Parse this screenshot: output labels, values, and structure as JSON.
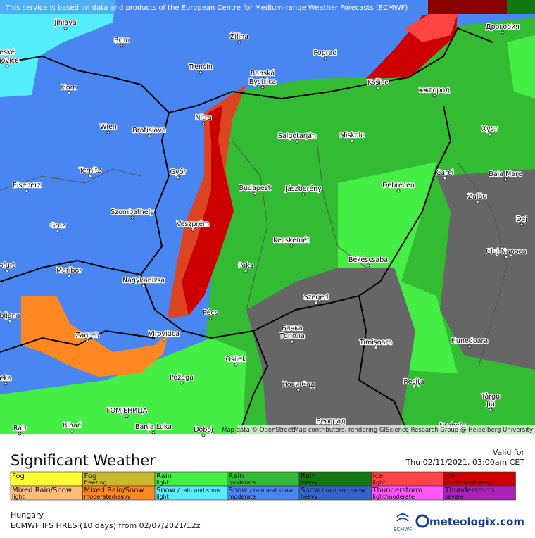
{
  "header": {
    "notice": "This service is based on data and products of the European Centre for Medium-range Weather Forecasts (ECMWF)"
  },
  "map": {
    "attribution": "Map data © OpenStreetMap contributors, rendering GIScience Research Group @ Heidelberg University",
    "cities": [
      "Jihlava",
      "Brno",
      "Žilina",
      "Poprad",
      "Дрогобич",
      "Trenčín",
      "Banská",
      "Bystrica",
      "Horn",
      "Košice",
      "Ужгород",
      "Nitra",
      "Wien",
      "Bratislava",
      "Salgótarján",
      "Miskolc",
      "Хуст",
      "Ternitz",
      "Győr",
      "Carei",
      "Baia Mare",
      "Eisenerz",
      "Budapest",
      "Jászberény",
      "Debrecen",
      "Szombathely",
      "Zalău",
      "Dej",
      "Graz",
      "Veszprém",
      "Kecskemét",
      "Cluj-Napoca",
      "Maribor",
      "Paks",
      "Békéscsaba",
      "Nagykanizsa",
      "Szeged",
      "Pécs",
      "Бачка",
      "Топола",
      "Hunedoara",
      "Zagreb",
      "Virovitica",
      "Timișoara",
      "Osijek",
      "Požega",
      "Нови Сад",
      "Reșița",
      "Târgu",
      "Jiu",
      "ГОМЈЕНИЦА",
      "Bihać",
      "Banja Luka",
      "Doboj",
      "Београд",
      "Drobeta",
      "eské",
      "ějovice",
      "ofurt",
      "bljana",
      "eka",
      "Rab"
    ]
  },
  "legend": {
    "title": "Significant Weather",
    "valid_label": "Valid for",
    "valid_time": "Thu 02/11/2021, 03:00am CET",
    "items": [
      {
        "label": "Fog",
        "color": "#ffff33"
      },
      {
        "label": "Fog",
        "sub": "freezing",
        "color": "#c9b92f"
      },
      {
        "label": "Rain",
        "sub": "light",
        "color": "#44ee44"
      },
      {
        "label": "Rain",
        "sub": "moderate",
        "color": "#33bb33"
      },
      {
        "label": "Rain",
        "sub": "heavy",
        "color": "#117711"
      },
      {
        "label": "Ice",
        "sub": "light",
        "color": "#ff4444"
      },
      {
        "label": "Ice",
        "sub": "moderate/heavy",
        "color": "#cc0000"
      },
      {
        "label": "Mixed Rain/Snow",
        "sub": "light",
        "color": "#ffbb77"
      },
      {
        "label": "Mixed Rain/Snow",
        "sub": "moderate/heavy",
        "color": "#ff8822"
      },
      {
        "label": "Snow",
        "label2": "/ rain and snow",
        "sub": "light",
        "color": "#55eeff"
      },
      {
        "label": "Snow",
        "label2": "/ rain and snow",
        "sub": "moderate",
        "color": "#4a86f2"
      },
      {
        "label": "Snow",
        "label2": "/ rain and snow",
        "sub": "heavy",
        "color": "#3366cc"
      },
      {
        "label": "Thunderstorm",
        "sub": "light/moderate",
        "color": "#ff55ff"
      },
      {
        "label": "Thunderstorm",
        "sub": "severe",
        "color": "#aa22bb"
      }
    ]
  },
  "footer": {
    "region": "Hungary",
    "model": "ECMWF IFS HRES (10 days) from 02/07/2021/12z",
    "ecmwf": "ECMWF",
    "brand": "meteologix.com"
  }
}
